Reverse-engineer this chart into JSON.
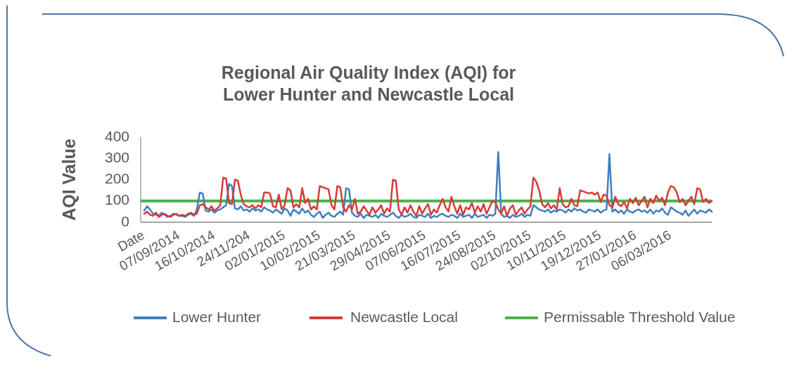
{
  "chart_data": {
    "type": "line",
    "title": "Regional Air Quality Index (AQI) for\nLower Hunter and Newcastle Local",
    "ylabel": "AQI Value",
    "categories": [
      "Date",
      null,
      null,
      null,
      null,
      null,
      null,
      null,
      null,
      null,
      null,
      null,
      "07/09/2014",
      null,
      null,
      null,
      null,
      null,
      null,
      null,
      null,
      null,
      null,
      null,
      "16/10/2014",
      null,
      null,
      null,
      null,
      null,
      null,
      null,
      null,
      null,
      null,
      null,
      "24/11/204",
      null,
      null,
      null,
      null,
      null,
      null,
      null,
      null,
      null,
      null,
      null,
      "02/01/2015",
      null,
      null,
      null,
      null,
      null,
      null,
      null,
      null,
      null,
      null,
      null,
      "10/02/2015",
      null,
      null,
      null,
      null,
      null,
      null,
      null,
      null,
      null,
      null,
      null,
      "21/03/2015",
      null,
      null,
      null,
      null,
      null,
      null,
      null,
      null,
      null,
      null,
      null,
      "29/04/2015",
      null,
      null,
      null,
      null,
      null,
      null,
      null,
      null,
      null,
      null,
      null,
      "07/06/2015",
      null,
      null,
      null,
      null,
      null,
      null,
      null,
      null,
      null,
      null,
      null,
      "16/07/2015",
      null,
      null,
      null,
      null,
      null,
      null,
      null,
      null,
      null,
      null,
      null,
      "24/08/2015",
      null,
      null,
      null,
      null,
      null,
      null,
      null,
      null,
      null,
      null,
      null,
      "02/10/2015",
      null,
      null,
      null,
      null,
      null,
      null,
      null,
      null,
      null,
      null,
      null,
      "10/11/2015",
      null,
      null,
      null,
      null,
      null,
      null,
      null,
      null,
      null,
      null,
      null,
      "19/12/2015",
      null,
      null,
      null,
      null,
      null,
      null,
      null,
      null,
      null,
      null,
      null,
      "27/01/2016",
      null,
      null,
      null,
      null,
      null,
      null,
      null,
      null,
      null,
      null,
      null,
      "06/03/2016",
      null,
      null,
      null,
      null,
      null,
      null,
      null,
      null,
      null,
      null,
      null,
      null,
      null,
      null
    ],
    "series": [
      {
        "name": "Lower Hunter",
        "color": "#3f7fbf",
        "values": [
          55,
          75,
          60,
          40,
          35,
          30,
          45,
          35,
          25,
          30,
          40,
          35,
          30,
          30,
          25,
          35,
          40,
          30,
          60,
          140,
          135,
          55,
          50,
          60,
          45,
          55,
          60,
          70,
          80,
          180,
          170,
          65,
          60,
          75,
          55,
          60,
          50,
          65,
          55,
          60,
          50,
          70,
          60,
          55,
          45,
          60,
          50,
          40,
          65,
          55,
          30,
          60,
          50,
          40,
          65,
          45,
          55,
          35,
          25,
          40,
          50,
          20,
          35,
          45,
          30,
          25,
          40,
          50,
          35,
          160,
          155,
          45,
          30,
          25,
          40,
          20,
          35,
          30,
          25,
          35,
          20,
          40,
          30,
          25,
          35,
          45,
          30,
          20,
          35,
          25,
          30,
          40,
          25,
          20,
          35,
          30,
          25,
          40,
          20,
          30,
          25,
          35,
          40,
          30,
          25,
          35,
          30,
          20,
          40,
          25,
          30,
          35,
          20,
          40,
          25,
          30,
          35,
          20,
          35,
          30,
          40,
          330,
          40,
          25,
          30,
          20,
          35,
          25,
          30,
          40,
          25,
          35,
          30,
          80,
          70,
          60,
          55,
          50,
          60,
          45,
          55,
          50,
          60,
          55,
          45,
          60,
          50,
          65,
          55,
          60,
          50,
          45,
          60,
          55,
          50,
          60,
          45,
          55,
          60,
          320,
          50,
          60,
          45,
          55,
          40,
          60,
          50,
          45,
          55,
          60,
          50,
          55,
          45,
          60,
          40,
          55,
          50,
          65,
          45,
          35,
          70,
          60,
          50,
          45,
          35,
          55,
          30,
          45,
          60,
          40,
          55,
          50,
          45,
          60,
          50
        ]
      },
      {
        "name": "Newcastle Local",
        "color": "#d63b35",
        "values": [
          40,
          50,
          35,
          30,
          45,
          25,
          35,
          40,
          30,
          25,
          35,
          40,
          30,
          35,
          30,
          40,
          45,
          35,
          40,
          80,
          85,
          70,
          60,
          75,
          55,
          65,
          80,
          210,
          205,
          90,
          85,
          200,
          195,
          130,
          85,
          75,
          70,
          80,
          65,
          80,
          70,
          140,
          140,
          135,
          75,
          70,
          130,
          60,
          80,
          160,
          150,
          70,
          85,
          70,
          160,
          90,
          110,
          60,
          75,
          60,
          170,
          165,
          160,
          155,
          80,
          60,
          170,
          165,
          70,
          50,
          80,
          60,
          110,
          40,
          50,
          75,
          55,
          35,
          70,
          45,
          60,
          80,
          40,
          65,
          50,
          200,
          195,
          60,
          35,
          70,
          45,
          80,
          50,
          30,
          75,
          40,
          65,
          85,
          35,
          60,
          45,
          80,
          110,
          70,
          50,
          120,
          75,
          40,
          80,
          35,
          70,
          60,
          90,
          45,
          75,
          50,
          85,
          40,
          70,
          100,
          95,
          60,
          40,
          75,
          30,
          65,
          80,
          35,
          55,
          70,
          40,
          60,
          75,
          210,
          190,
          150,
          85,
          70,
          90,
          65,
          80,
          60,
          160,
          85,
          70,
          75,
          110,
          80,
          75,
          150,
          145,
          140,
          135,
          140,
          130,
          140,
          95,
          130,
          125,
          80,
          70,
          120,
          85,
          75,
          95,
          65,
          110,
          90,
          115,
          80,
          100,
          120,
          70,
          110,
          90,
          125,
          100,
          115,
          80,
          140,
          170,
          165,
          140,
          95,
          110,
          80,
          100,
          120,
          85,
          160,
          155,
          95,
          110,
          90,
          100
        ]
      }
    ],
    "ref_lines": [
      {
        "axis": "y",
        "value": 100,
        "label": "Permissable Threshold Value",
        "color": "#4caf50"
      }
    ],
    "ylim": [
      0,
      400
    ],
    "yticks": [
      0,
      100,
      200,
      300,
      400
    ],
    "grid": false,
    "legend": "bottom",
    "marker": "none",
    "line_style": "solid"
  }
}
